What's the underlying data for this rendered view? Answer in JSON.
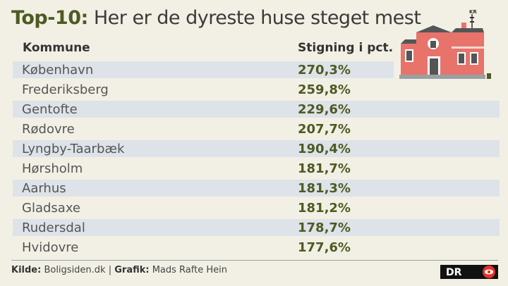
{
  "title": {
    "lead": "Top-10:",
    "rest": " Her er de dyreste huse steget mest"
  },
  "chart_data": {
    "type": "table",
    "columns": [
      "Kommune",
      "Stigning i pct."
    ],
    "rows": [
      {
        "kommune": "København",
        "stigning": "270,3%"
      },
      {
        "kommune": "Frederiksberg",
        "stigning": "259,8%"
      },
      {
        "kommune": "Gentofte",
        "stigning": "229,6%"
      },
      {
        "kommune": "Rødovre",
        "stigning": "207,7%"
      },
      {
        "kommune": "Lyngby-Taarbæk",
        "stigning": "190,4%"
      },
      {
        "kommune": "Hørsholm",
        "stigning": "181,7%"
      },
      {
        "kommune": "Aarhus",
        "stigning": "181,3%"
      },
      {
        "kommune": "Gladsaxe",
        "stigning": "181,2%"
      },
      {
        "kommune": "Rudersdal",
        "stigning": "178,7%"
      },
      {
        "kommune": "Hvidovre",
        "stigning": "177,6%"
      }
    ]
  },
  "footer": {
    "source_label": "Kilde:",
    "source_value": " Boligsiden.dk | ",
    "graphic_label": "Grafik:",
    "graphic_value": " Mads Rafte Hein"
  },
  "house": {
    "sign": "KR"
  },
  "logo": {
    "text": "DR"
  },
  "colors": {
    "accent": "#4e5a22",
    "house": "#e8736a",
    "row_shade": "#dde3e8",
    "background": "#f2f0e4"
  }
}
